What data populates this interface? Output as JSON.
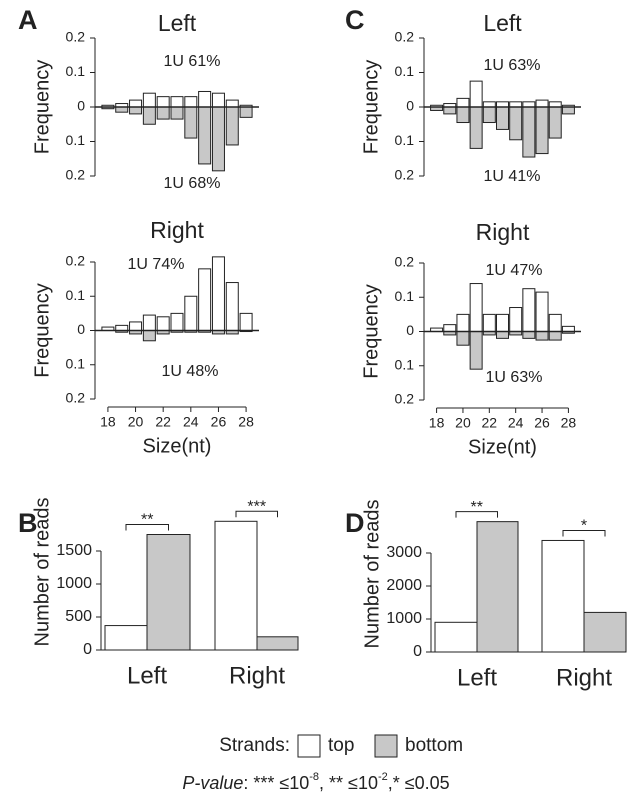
{
  "chart_data": [
    {
      "type": "mirrored_bar",
      "panel": "A",
      "title": "Left",
      "ylabel": "Frequency",
      "x": [
        18,
        19,
        20,
        21,
        22,
        23,
        24,
        25,
        26,
        27,
        28
      ],
      "xlim": [
        17.5,
        28.5
      ],
      "ylim": [
        -0.2,
        0.2
      ],
      "yticks": [
        0.2,
        0.1,
        0,
        {
          "value": -0.1,
          "label": "0.1"
        },
        {
          "value": -0.2,
          "label": "0.2"
        }
      ],
      "annotations": [
        "1U 61%",
        "1U 68%"
      ],
      "series": [
        {
          "name": "top",
          "color": "#ffffff",
          "values": [
            0.005,
            0.01,
            0.02,
            0.04,
            0.03,
            0.03,
            0.03,
            0.045,
            0.04,
            0.02,
            0.005
          ]
        },
        {
          "name": "bottom",
          "color": "#c8c8c8",
          "values": [
            -0.005,
            -0.015,
            -0.02,
            -0.05,
            -0.035,
            -0.035,
            -0.09,
            -0.165,
            -0.185,
            -0.11,
            -0.03
          ]
        }
      ]
    },
    {
      "type": "mirrored_bar",
      "title": "Right",
      "ylabel": "Frequency",
      "xlabel": "Size(nt)",
      "x": [
        18,
        19,
        20,
        21,
        22,
        23,
        24,
        25,
        26,
        27,
        28
      ],
      "xlim": [
        17.5,
        28.5
      ],
      "xticks": [
        18,
        20,
        22,
        24,
        26,
        28
      ],
      "ylim": [
        -0.2,
        0.2
      ],
      "yticks": [
        0.2,
        0.1,
        0,
        {
          "value": -0.1,
          "label": "0.1"
        },
        {
          "value": -0.2,
          "label": "0.2"
        }
      ],
      "annotations": [
        "1U 74%",
        "1U 48%"
      ],
      "series": [
        {
          "name": "top",
          "color": "#ffffff",
          "values": [
            0.01,
            0.015,
            0.025,
            0.045,
            0.04,
            0.05,
            0.1,
            0.18,
            0.215,
            0.14,
            0.05
          ]
        },
        {
          "name": "bottom",
          "color": "#c8c8c8",
          "values": [
            0,
            -0.005,
            -0.01,
            -0.03,
            -0.01,
            -0.005,
            -0.005,
            -0.005,
            -0.01,
            -0.01,
            -0.003
          ]
        }
      ]
    },
    {
      "type": "mirrored_bar",
      "panel": "C",
      "title": "Left",
      "ylabel": "Frequency",
      "x": [
        18,
        19,
        20,
        21,
        22,
        23,
        24,
        25,
        26,
        27,
        28
      ],
      "xlim": [
        17.5,
        28.5
      ],
      "ylim": [
        -0.2,
        0.2
      ],
      "yticks": [
        0.2,
        0.1,
        0,
        {
          "value": -0.1,
          "label": "0.1"
        },
        {
          "value": -0.2,
          "label": "0.2"
        }
      ],
      "annotations": [
        "1U 63%",
        "1U 41%"
      ],
      "series": [
        {
          "name": "top",
          "color": "#ffffff",
          "values": [
            0.005,
            0.01,
            0.025,
            0.075,
            0.015,
            0.015,
            0.015,
            0.015,
            0.02,
            0.015,
            0.005
          ]
        },
        {
          "name": "bottom",
          "color": "#c8c8c8",
          "values": [
            -0.01,
            -0.02,
            -0.045,
            -0.12,
            -0.045,
            -0.065,
            -0.095,
            -0.145,
            -0.135,
            -0.09,
            -0.02
          ]
        }
      ]
    },
    {
      "type": "mirrored_bar",
      "title": "Right",
      "ylabel": "Frequency",
      "xlabel": "Size(nt)",
      "x": [
        18,
        19,
        20,
        21,
        22,
        23,
        24,
        25,
        26,
        27,
        28
      ],
      "xlim": [
        17.5,
        28.5
      ],
      "xticks": [
        18,
        20,
        22,
        24,
        26,
        28
      ],
      "ylim": [
        -0.2,
        0.2
      ],
      "yticks": [
        0.2,
        0.1,
        0,
        {
          "value": -0.1,
          "label": "0.1"
        },
        {
          "value": -0.2,
          "label": "0.2"
        }
      ],
      "annotations": [
        "1U 47%",
        "1U 63%"
      ],
      "series": [
        {
          "name": "top",
          "color": "#ffffff",
          "values": [
            0.01,
            0.02,
            0.05,
            0.14,
            0.05,
            0.05,
            0.07,
            0.125,
            0.115,
            0.05,
            0.015
          ]
        },
        {
          "name": "bottom",
          "color": "#c8c8c8",
          "values": [
            0,
            -0.01,
            -0.04,
            -0.11,
            -0.01,
            -0.02,
            -0.01,
            -0.02,
            -0.025,
            -0.025,
            -0.005
          ]
        }
      ]
    },
    {
      "type": "bar",
      "panel": "B",
      "ylabel": "Number of reads",
      "categories": [
        "Left",
        "Right"
      ],
      "ylim": [
        0,
        2000
      ],
      "yticks": [
        0,
        500,
        1000,
        1500
      ],
      "significance": [
        "**",
        "***"
      ],
      "series": [
        {
          "name": "top",
          "color": "#ffffff",
          "values": [
            370,
            1950
          ]
        },
        {
          "name": "bottom",
          "color": "#c8c8c8",
          "values": [
            1750,
            200
          ]
        }
      ]
    },
    {
      "type": "bar",
      "panel": "D",
      "ylabel": "Number of reads",
      "categories": [
        "Left",
        "Right"
      ],
      "ylim": [
        0,
        4000
      ],
      "yticks": [
        0,
        1000,
        2000,
        3000
      ],
      "significance": [
        "**",
        "*"
      ],
      "series": [
        {
          "name": "top",
          "color": "#ffffff",
          "values": [
            900,
            3380
          ]
        },
        {
          "name": "bottom",
          "color": "#c8c8c8",
          "values": [
            3950,
            1200
          ]
        }
      ]
    }
  ],
  "legend": {
    "label": "Strands:"
  },
  "footnote": {
    "label": "P-value",
    "parts": [
      ":  *** ≤10",
      "-8",
      ",  ** ≤10",
      "-2",
      ",* ≤0.05"
    ]
  }
}
